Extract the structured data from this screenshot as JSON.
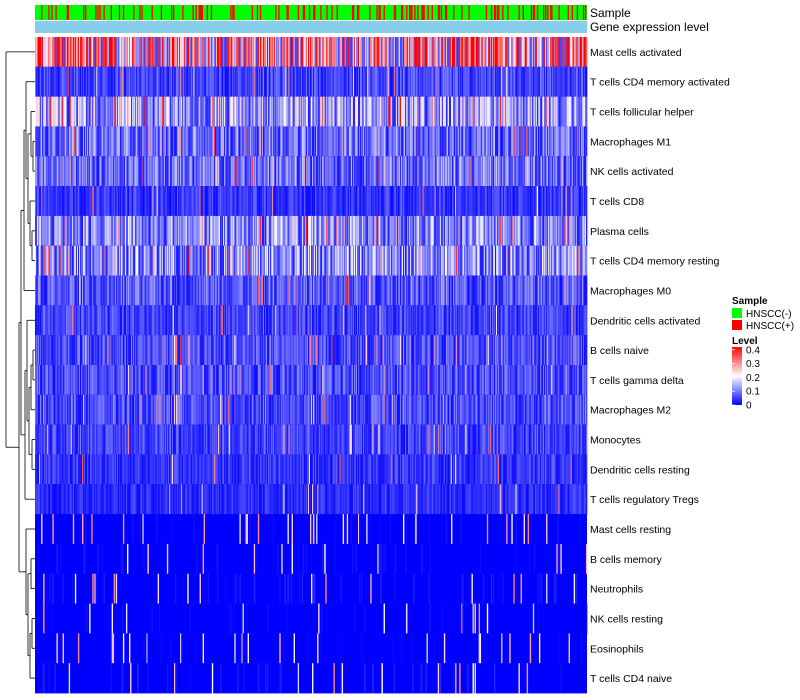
{
  "chart_data": {
    "type": "heatmap",
    "title": "",
    "rows": [
      "Mast cells activated",
      "T cells CD4 memory activated",
      "T cells follicular helper",
      "Macrophages M1",
      "NK cells activated",
      "T cells CD8",
      "Plasma cells",
      "T cells CD4 memory resting",
      "Macrophages M0",
      "Dendritic cells activated",
      "B cells naive",
      "T cells gamma delta",
      "Macrophages M2",
      "Monocytes",
      "Dendritic cells resting",
      "T cells regulatory  Tregs",
      "Mast cells resting",
      "B cells memory",
      "Neutrophils",
      "NK cells resting",
      "Eosinophils",
      "T cells CD4 naive"
    ],
    "row_mean_level": [
      0.3,
      0.06,
      0.15,
      0.1,
      0.1,
      0.05,
      0.12,
      0.13,
      0.08,
      0.06,
      0.07,
      0.07,
      0.07,
      0.06,
      0.05,
      0.04,
      0.01,
      0.015,
      0.02,
      0.01,
      0.005,
      0.02
    ],
    "column_annotations": [
      "Sample",
      "Gene expression level"
    ],
    "sample_columns": 540,
    "legends": {
      "sample": {
        "title": "Sample",
        "entries": [
          {
            "label": "HNSCC(-)",
            "color": "#00ff00"
          },
          {
            "label": "HNSCC(+)",
            "color": "#ff0000"
          }
        ]
      },
      "level": {
        "title": "Level",
        "ticks": [
          "0.4",
          "0.3",
          "0.2",
          "0.1",
          "0"
        ],
        "tick_values": [
          0.4,
          0.3,
          0.2,
          0.1,
          0
        ],
        "range": [
          0,
          0.42
        ],
        "colors": {
          "low": "#0000ff",
          "mid": "#ffffff",
          "high": "#ff0000"
        }
      }
    },
    "annotation_colors": {
      "negative": "#00ff00",
      "positive": "#ff0000",
      "expression_level": "#87ceeb"
    },
    "dendrogram": "rows"
  }
}
